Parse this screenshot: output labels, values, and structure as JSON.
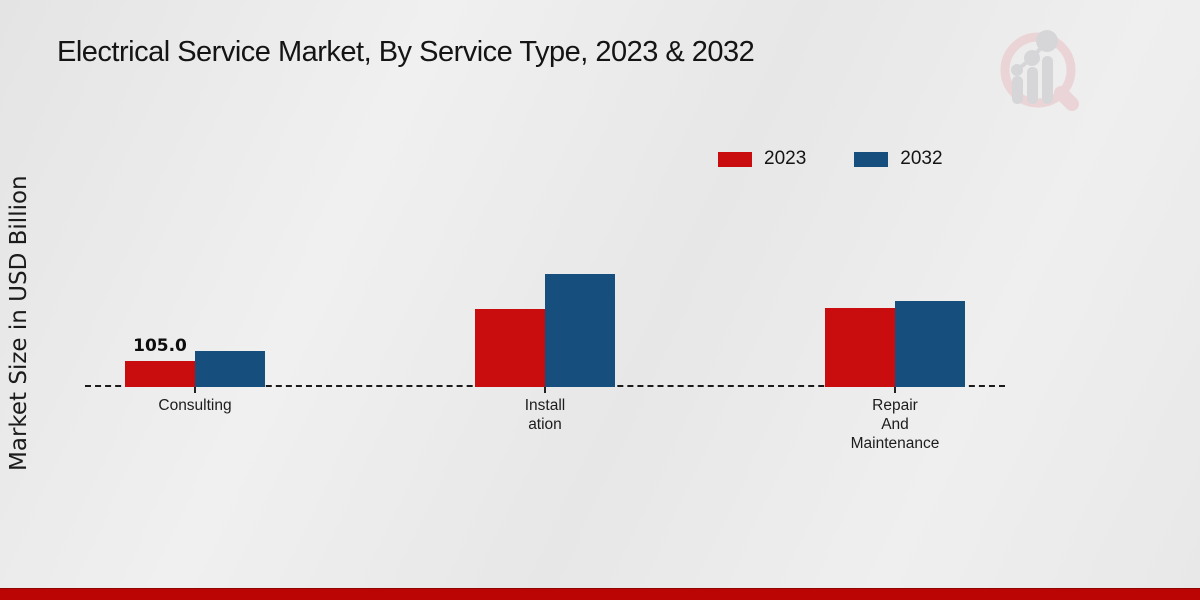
{
  "page": {
    "title": "Electrical Service Market, By Service Type, 2023 & 2032"
  },
  "colors": {
    "series_2023_red": "#c90d0e",
    "series_2032_blue": "#164e7e",
    "footer_bar": "#bb0404",
    "baseline": "#1a1a1a",
    "logo_ring_pink": "#ead0d3",
    "logo_gray": "#d2d3d6"
  },
  "icons": {
    "logo": "magnifier-bar-chart-logo"
  },
  "y_axis": {
    "label": "Market Size in USD Billion"
  },
  "legend": {
    "position": "top-right",
    "items": [
      {
        "label": "2023",
        "color": "#c90d0e"
      },
      {
        "label": "2032",
        "color": "#164e7e"
      }
    ]
  },
  "chart_data": {
    "type": "bar",
    "title": "Electrical Service Market, By Service Type, 2023 & 2032",
    "xlabel": "",
    "ylabel": "Market Size in USD Billion",
    "categories": [
      "Consulting",
      "Installation",
      "Repair And Maintenance"
    ],
    "categories_display": [
      [
        "Consulting"
      ],
      [
        "Install",
        "ation"
      ],
      [
        "Repair",
        "And",
        "Maintenance"
      ]
    ],
    "series": [
      {
        "name": "2023",
        "color": "#c90d0e",
        "values": [
          105.0,
          320,
          325
        ],
        "value_labels": [
          "105.0",
          "",
          ""
        ]
      },
      {
        "name": "2032",
        "color": "#164e7e",
        "values": [
          150,
          465,
          355
        ],
        "value_labels": [
          "",
          "",
          ""
        ]
      }
    ],
    "ylim": [
      0,
      520
    ],
    "grid": false,
    "baseline_style": "dashed",
    "legend_position": "top-right"
  }
}
